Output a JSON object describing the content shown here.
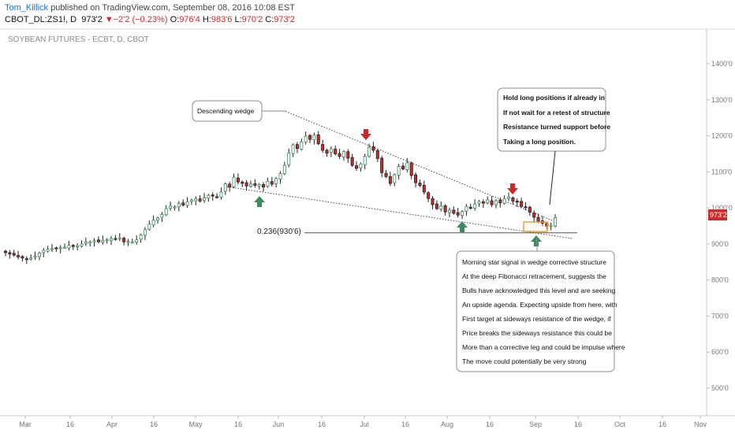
{
  "header": {
    "author": "Tom_Killick",
    "published_text": "published on TradingView.com, September 08, 2016 10:08 EST",
    "symbol": "CBOT_DL:ZS1!, D",
    "last": "973'2",
    "down_arrow": "▼",
    "change": "−2'2 (−0.23%)",
    "o_label": "O:",
    "o_value": "976'4",
    "h_label": "H:",
    "h_value": "983'6",
    "l_label": "L:",
    "l_value": "970'2",
    "c_label": "C:",
    "c_value": "973'2"
  },
  "colors": {
    "up": "#3c8a5e",
    "down": "#cc2a2a",
    "highlight": "#f0a030"
  },
  "chart_data": {
    "type": "candlestick",
    "title": "SOYBEAN FUTURES - ECBT, D, CBOT",
    "y_ticks": [
      "500'0",
      "600'0",
      "700'0",
      "800'0",
      "900'0",
      "1000'0",
      "1100'0",
      "1200'0",
      "1300'0",
      "1400'0"
    ],
    "y_range": [
      480,
      1440
    ],
    "x_ticks": [
      "Mar",
      "16",
      "Apr",
      "16",
      "May",
      "16",
      "Jun",
      "16",
      "Jul",
      "16",
      "Aug",
      "16",
      "Sep",
      "16",
      "Oct",
      "16",
      "Nov"
    ],
    "last_price_label": "973'2",
    "fib_label": "0.236(930'6)",
    "fib_level": 930.75,
    "wedge_label": "Descending wedge",
    "callout_top": [
      "Hold long positions if already in",
      "If not wait for a retest of structure",
      "Resistance turned support before",
      "Taking a long position."
    ],
    "callout_bottom": [
      "Morning star signal in wedge corrective structure",
      "At the deep Fibonacci retracement, suggests the",
      "Bulls have acknowledged this level and are seeking",
      "An upside agenda. Expecting upside from here, with",
      "First target at sideways resistance of the wedge, if",
      "Price breaks the sideways resistance this could be",
      "More than a corrective leg and could be impulse where",
      "The move could potentially be very strong"
    ],
    "closes": [
      876,
      872,
      869,
      864,
      861,
      858,
      861,
      866,
      875,
      882,
      885,
      887,
      888,
      890,
      891,
      896,
      893,
      895,
      900,
      905,
      906,
      909,
      906,
      910,
      912,
      915,
      913,
      917,
      906,
      907,
      905,
      911,
      925,
      940,
      955,
      966,
      972,
      982,
      998,
      1005,
      1003,
      1012,
      1008,
      1017,
      1022,
      1025,
      1019,
      1028,
      1035,
      1033,
      1030,
      1044,
      1067,
      1058,
      1085,
      1072,
      1068,
      1061,
      1066,
      1063,
      1065,
      1058,
      1074,
      1066,
      1082,
      1095,
      1118,
      1152,
      1175,
      1165,
      1183,
      1199,
      1190,
      1202,
      1178,
      1160,
      1152,
      1164,
      1150,
      1143,
      1156,
      1138,
      1118,
      1110,
      1122,
      1143,
      1168,
      1160,
      1137,
      1098,
      1087,
      1068,
      1092,
      1115,
      1108,
      1125,
      1090,
      1070,
      1062,
      1044,
      1026,
      1009,
      998,
      1005,
      989,
      994,
      985,
      980,
      990,
      1004,
      999,
      1011,
      1018,
      1013,
      1022,
      1009,
      1020,
      1014,
      1025,
      1030,
      1019,
      1016,
      1004,
      1001,
      988,
      974,
      962,
      958,
      950,
      952,
      973
    ]
  }
}
